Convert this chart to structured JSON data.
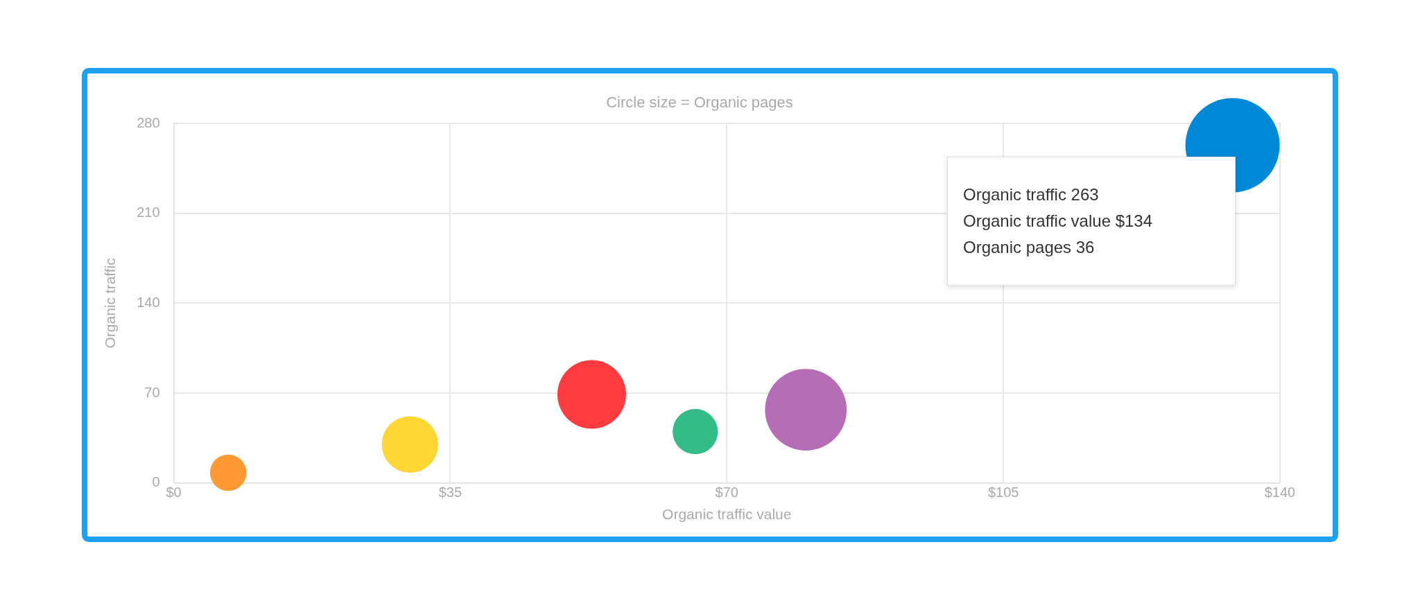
{
  "chart_data": {
    "type": "bubble",
    "title": "Circle size = Organic pages",
    "xlabel": "Organic traffic value",
    "ylabel": "Organic traffic",
    "xlim": [
      0,
      140
    ],
    "xticks": [
      {
        "value": 0,
        "label": "$0"
      },
      {
        "value": 35,
        "label": "$35"
      },
      {
        "value": 70,
        "label": "$70"
      },
      {
        "value": 105,
        "label": "$105"
      },
      {
        "value": 140,
        "label": "$140"
      }
    ],
    "ylim": [
      0,
      280
    ],
    "yticks": [
      0,
      70,
      140,
      210,
      280
    ],
    "grid": true,
    "legend": false,
    "x": [
      6.9,
      29.9,
      52.9,
      66,
      80,
      134
    ],
    "values": [
      8,
      30,
      69,
      40,
      57,
      263
    ],
    "sizes": [
      0.15,
      0.36,
      0.53,
      0.23,
      0.75,
      1
    ],
    "colors": [
      "#ff9933",
      "#ffd633",
      "#ff3b3f",
      "#33bb88",
      "#b56db5",
      "#0088d8"
    ],
    "annotations": [
      "Organic traffic 263",
      "Organic traffic value $134",
      "Organic pages 36"
    ]
  }
}
